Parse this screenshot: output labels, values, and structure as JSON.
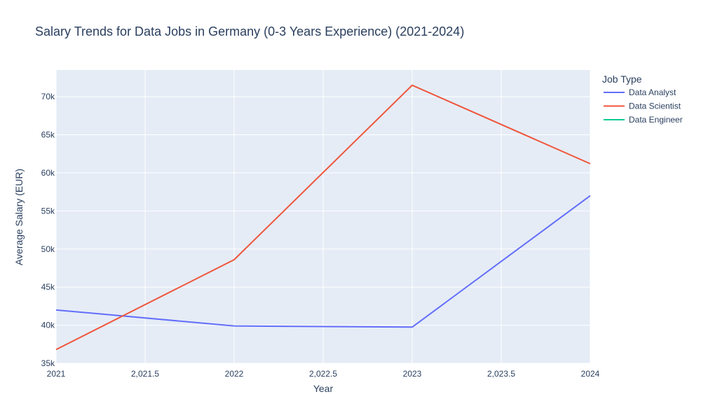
{
  "chart_data": {
    "type": "line",
    "title": "Salary Trends for Data Jobs in Germany (0-3 Years Experience) (2021-2024)",
    "xlabel": "Year",
    "ylabel": "Average Salary (EUR)",
    "xlim": [
      2021,
      2024
    ],
    "ylim": [
      35000,
      73500
    ],
    "x_ticks": [
      {
        "value": 2021,
        "label": "2021"
      },
      {
        "value": 2021.5,
        "label": "2,021.5"
      },
      {
        "value": 2022,
        "label": "2022"
      },
      {
        "value": 2022.5,
        "label": "2,022.5"
      },
      {
        "value": 2023,
        "label": "2023"
      },
      {
        "value": 2023.5,
        "label": "2,023.5"
      },
      {
        "value": 2024,
        "label": "2024"
      }
    ],
    "y_ticks": [
      {
        "value": 35000,
        "label": "35k"
      },
      {
        "value": 40000,
        "label": "40k"
      },
      {
        "value": 45000,
        "label": "45k"
      },
      {
        "value": 50000,
        "label": "50k"
      },
      {
        "value": 55000,
        "label": "55k"
      },
      {
        "value": 60000,
        "label": "60k"
      },
      {
        "value": 65000,
        "label": "65k"
      },
      {
        "value": 70000,
        "label": "70k"
      }
    ],
    "grid": true,
    "legend": {
      "title": "Job Type",
      "position": "right"
    },
    "series": [
      {
        "name": "Data Analyst",
        "color": "#636efa",
        "x": [
          2021,
          2022,
          2023,
          2024
        ],
        "y": [
          42000,
          39900,
          39750,
          57000
        ]
      },
      {
        "name": "Data Scientist",
        "color": "#ef553b",
        "x": [
          2021,
          2022,
          2023,
          2024
        ],
        "y": [
          36800,
          48600,
          71500,
          61200
        ]
      },
      {
        "name": "Data Engineer",
        "color": "#00cc96",
        "x": [],
        "y": []
      }
    ]
  },
  "colors": {
    "plot_background": "#e5ecf6",
    "grid": "#ffffff",
    "text": "#2a3f5f"
  }
}
